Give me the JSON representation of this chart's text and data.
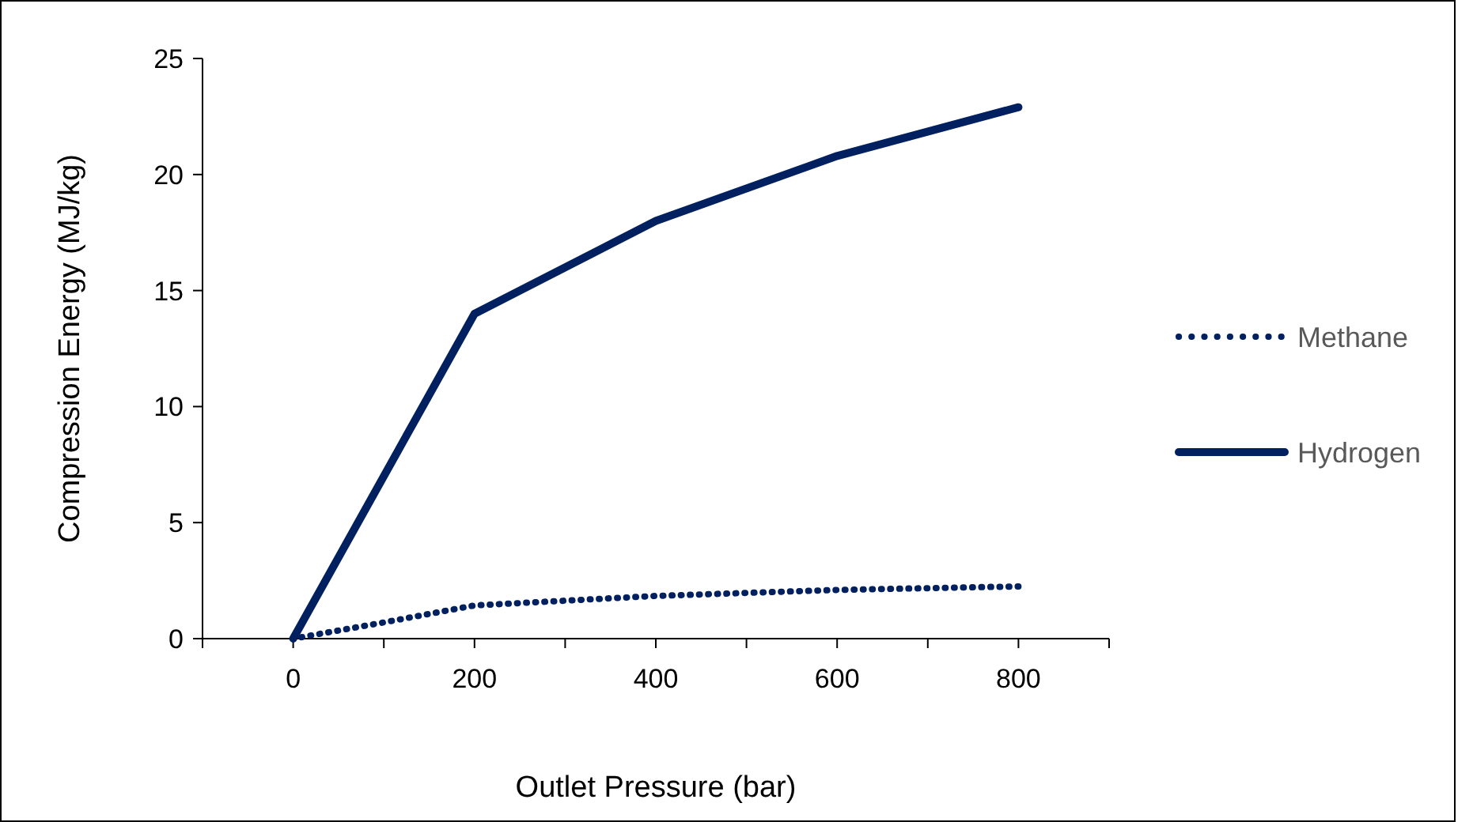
{
  "chart_data": {
    "type": "line",
    "xlabel": "Outlet Pressure (bar)",
    "ylabel": "Compression Energy (MJ/kg)",
    "xlim": [
      -100,
      900
    ],
    "xticks": [
      {
        "value": -100,
        "label": null
      },
      0,
      {
        "value": 100,
        "label": null
      },
      200,
      {
        "value": 300,
        "label": null
      },
      400,
      {
        "value": 500,
        "label": null
      },
      600,
      {
        "value": 700,
        "label": null
      },
      800,
      {
        "value": 900,
        "label": null
      }
    ],
    "ylim": [
      0,
      25
    ],
    "yticks": [
      0,
      5,
      10,
      15,
      20,
      25
    ],
    "grid": false,
    "legend": "right",
    "marker": "none",
    "series": [
      {
        "name": "Methane",
        "color": "#002060",
        "line_style": "dotted",
        "x": [
          0,
          100,
          200,
          400,
          600,
          800
        ],
        "values": [
          0,
          0.7,
          1.43,
          1.84,
          2.1,
          2.25
        ]
      },
      {
        "name": "Hydrogen",
        "color": "#002060",
        "line_style": "solid",
        "x": [
          0,
          200,
          400,
          600,
          800
        ],
        "values": [
          0,
          14,
          18,
          20.8,
          22.9
        ]
      }
    ]
  }
}
